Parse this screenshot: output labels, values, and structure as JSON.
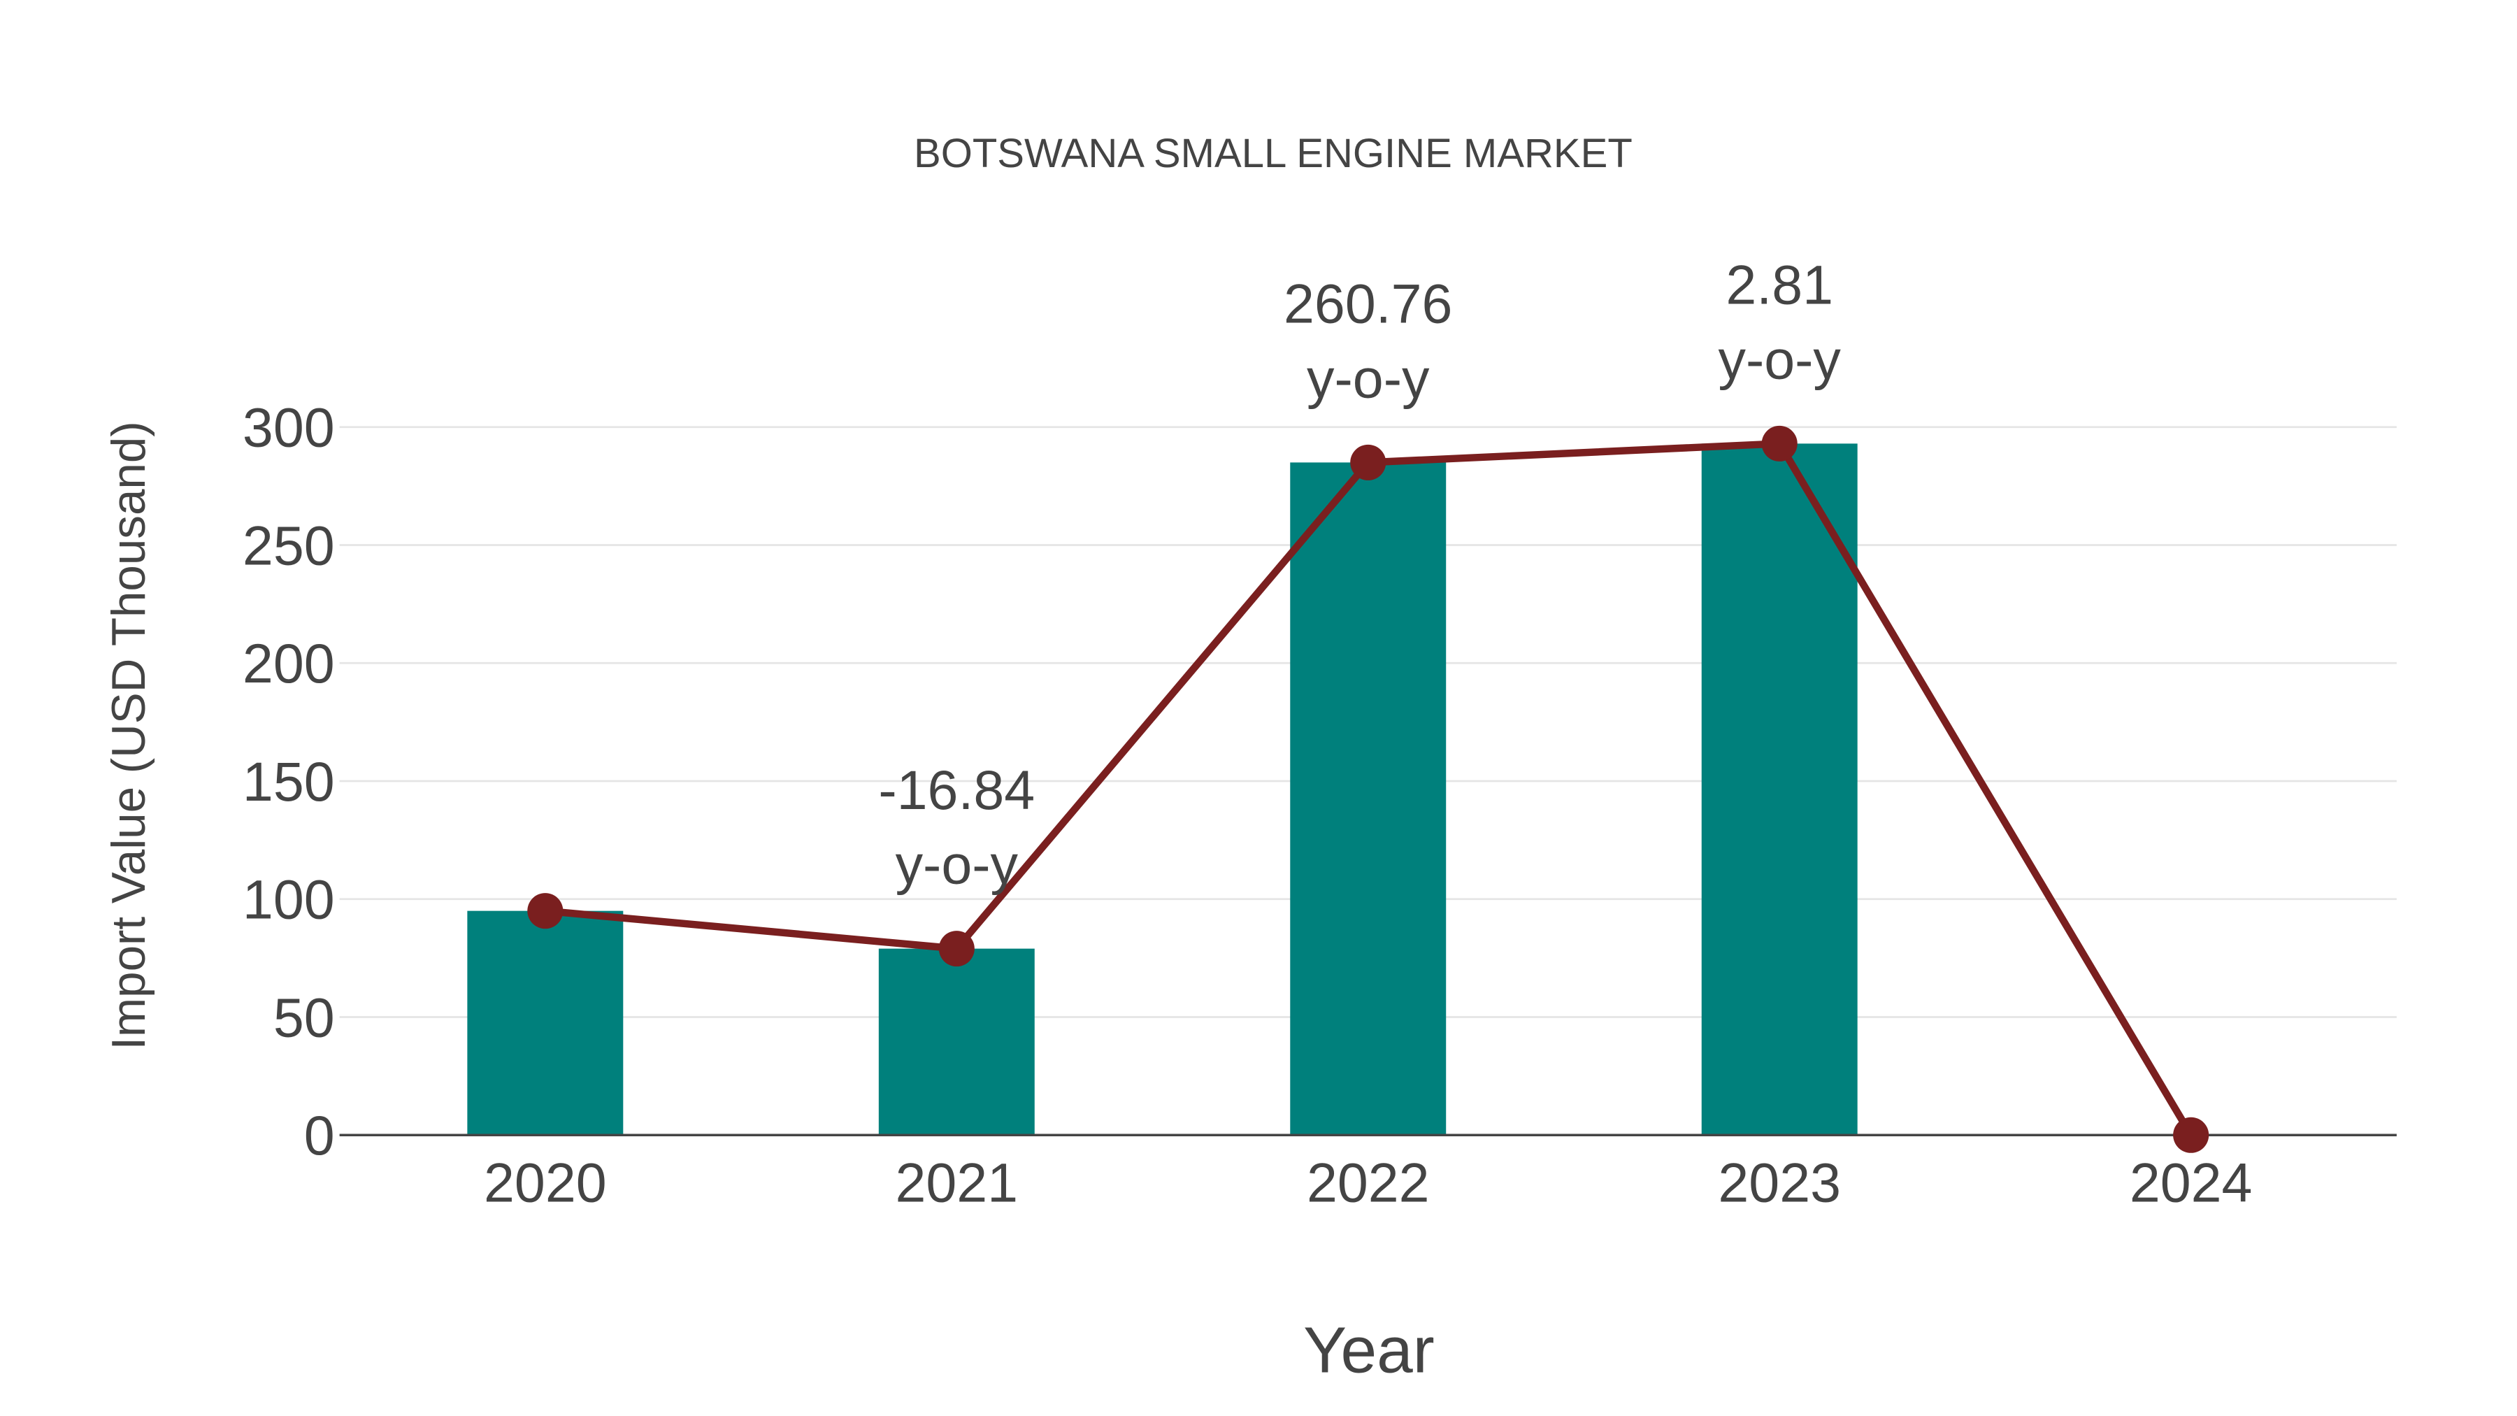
{
  "chart_data": {
    "type": "bar",
    "title": "BOTSWANA SMALL ENGINE MARKET",
    "xlabel": "Year",
    "ylabel": "Import Value (USD Thousand)",
    "ylim": [
      0,
      300
    ],
    "yticks": [
      0,
      50,
      100,
      150,
      200,
      250,
      300
    ],
    "categories": [
      "2020",
      "2021",
      "2022",
      "2023",
      "2024"
    ],
    "series": [
      {
        "name": "Import Value (bars)",
        "type": "bar",
        "color": "#00807c",
        "values": [
          95,
          79,
          285,
          293,
          0
        ]
      },
      {
        "name": "Import Value (line)",
        "type": "line",
        "color": "#7a1f1f",
        "values": [
          95,
          79,
          285,
          293,
          0
        ]
      }
    ],
    "annotations": [
      {
        "category": "2021",
        "value": "-16.84",
        "suffix": "y-o-y"
      },
      {
        "category": "2022",
        "value": "260.76",
        "suffix": "y-o-y"
      },
      {
        "category": "2023",
        "value": "2.81",
        "suffix": "y-o-y"
      }
    ],
    "grid": true
  }
}
